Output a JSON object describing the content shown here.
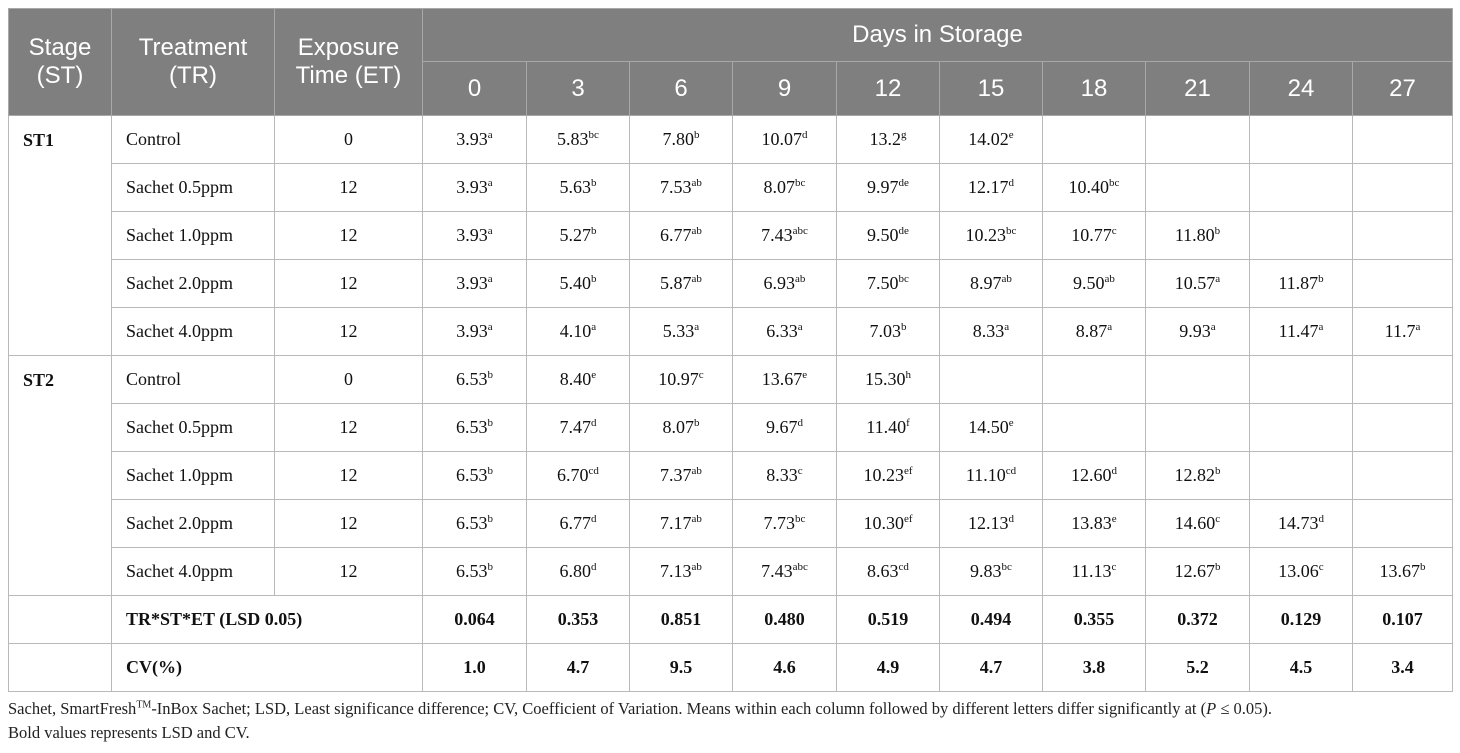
{
  "headers": {
    "stage": "Stage (ST)",
    "treatment": "Treatment (TR)",
    "exposure": "Exposure Time (ET)",
    "days": "Days in Storage",
    "day_values": [
      "0",
      "3",
      "6",
      "9",
      "12",
      "15",
      "18",
      "21",
      "24",
      "27"
    ]
  },
  "stages": [
    {
      "name": "ST1",
      "rows": [
        {
          "treatment": "Control",
          "exposure": "0",
          "cells": [
            [
              "3.93",
              "a"
            ],
            [
              "5.83",
              "bc"
            ],
            [
              "7.80",
              "b"
            ],
            [
              "10.07",
              "d"
            ],
            [
              "13.2",
              "g"
            ],
            [
              "14.02",
              "e"
            ],
            [
              "",
              ""
            ],
            [
              "",
              ""
            ],
            [
              "",
              ""
            ],
            [
              "",
              ""
            ]
          ]
        },
        {
          "treatment": "Sachet 0.5ppm",
          "exposure": "12",
          "cells": [
            [
              "3.93",
              "a"
            ],
            [
              "5.63",
              "b"
            ],
            [
              "7.53",
              "ab"
            ],
            [
              "8.07",
              "bc"
            ],
            [
              "9.97",
              "de"
            ],
            [
              "12.17",
              "d"
            ],
            [
              "10.40",
              "bc"
            ],
            [
              "",
              ""
            ],
            [
              "",
              ""
            ],
            [
              "",
              ""
            ]
          ]
        },
        {
          "treatment": "Sachet 1.0ppm",
          "exposure": "12",
          "cells": [
            [
              "3.93",
              "a"
            ],
            [
              "5.27",
              "b"
            ],
            [
              "6.77",
              "ab"
            ],
            [
              "7.43",
              "abc"
            ],
            [
              "9.50",
              "de"
            ],
            [
              "10.23",
              "bc"
            ],
            [
              "10.77",
              "c"
            ],
            [
              "11.80",
              "b"
            ],
            [
              "",
              ""
            ],
            [
              "",
              ""
            ]
          ]
        },
        {
          "treatment": "Sachet 2.0ppm",
          "exposure": "12",
          "cells": [
            [
              "3.93",
              "a"
            ],
            [
              "5.40",
              "b"
            ],
            [
              "5.87",
              "ab"
            ],
            [
              "6.93",
              "ab"
            ],
            [
              "7.50",
              "bc"
            ],
            [
              "8.97",
              "ab"
            ],
            [
              "9.50",
              "ab"
            ],
            [
              "10.57",
              "a"
            ],
            [
              "11.87",
              "b"
            ],
            [
              "",
              ""
            ]
          ]
        },
        {
          "treatment": "Sachet 4.0ppm",
          "exposure": "12",
          "cells": [
            [
              "3.93",
              "a"
            ],
            [
              "4.10",
              "a"
            ],
            [
              "5.33",
              "a"
            ],
            [
              "6.33",
              "a"
            ],
            [
              "7.03",
              "b"
            ],
            [
              "8.33",
              "a"
            ],
            [
              "8.87",
              "a"
            ],
            [
              "9.93",
              "a"
            ],
            [
              "11.47",
              "a"
            ],
            [
              "11.7",
              "a"
            ]
          ]
        }
      ]
    },
    {
      "name": "ST2",
      "rows": [
        {
          "treatment": "Control",
          "exposure": "0",
          "cells": [
            [
              "6.53",
              "b"
            ],
            [
              "8.40",
              "e"
            ],
            [
              "10.97",
              "c"
            ],
            [
              "13.67",
              "e"
            ],
            [
              "15.30",
              "h"
            ],
            [
              "",
              ""
            ],
            [
              "",
              ""
            ],
            [
              "",
              ""
            ],
            [
              "",
              ""
            ],
            [
              "",
              ""
            ]
          ]
        },
        {
          "treatment": "Sachet 0.5ppm",
          "exposure": "12",
          "cells": [
            [
              "6.53",
              "b"
            ],
            [
              "7.47",
              "d"
            ],
            [
              "8.07",
              "b"
            ],
            [
              "9.67",
              "d"
            ],
            [
              "11.40",
              "f"
            ],
            [
              "14.50",
              "e"
            ],
            [
              "",
              ""
            ],
            [
              "",
              ""
            ],
            [
              "",
              ""
            ],
            [
              "",
              ""
            ]
          ]
        },
        {
          "treatment": "Sachet 1.0ppm",
          "exposure": "12",
          "cells": [
            [
              "6.53",
              "b"
            ],
            [
              "6.70",
              "cd"
            ],
            [
              "7.37",
              "ab"
            ],
            [
              "8.33",
              "c"
            ],
            [
              "10.23",
              "ef"
            ],
            [
              "11.10",
              "cd"
            ],
            [
              "12.60",
              "d"
            ],
            [
              "12.82",
              "b"
            ],
            [
              "",
              ""
            ],
            [
              "",
              ""
            ]
          ]
        },
        {
          "treatment": "Sachet 2.0ppm",
          "exposure": "12",
          "cells": [
            [
              "6.53",
              "b"
            ],
            [
              "6.77",
              "d"
            ],
            [
              "7.17",
              "ab"
            ],
            [
              "7.73",
              "bc"
            ],
            [
              "10.30",
              "ef"
            ],
            [
              "12.13",
              "d"
            ],
            [
              "13.83",
              "e"
            ],
            [
              "14.60",
              "c"
            ],
            [
              "14.73",
              "d"
            ],
            [
              "",
              ""
            ]
          ]
        },
        {
          "treatment": "Sachet 4.0ppm",
          "exposure": "12",
          "cells": [
            [
              "6.53",
              "b"
            ],
            [
              "6.80",
              "d"
            ],
            [
              "7.13",
              "ab"
            ],
            [
              "7.43",
              "abc"
            ],
            [
              "8.63",
              "cd"
            ],
            [
              "9.83",
              "bc"
            ],
            [
              "11.13",
              "c"
            ],
            [
              "12.67",
              "b"
            ],
            [
              "13.06",
              "c"
            ],
            [
              "13.67",
              "b"
            ]
          ]
        }
      ]
    }
  ],
  "stats": [
    {
      "label": "TR*ST*ET (LSD 0.05)",
      "values": [
        "0.064",
        "0.353",
        "0.851",
        "0.480",
        "0.519",
        "0.494",
        "0.355",
        "0.372",
        "0.129",
        "0.107"
      ]
    },
    {
      "label": "CV(%)",
      "values": [
        "1.0",
        "4.7",
        "9.5",
        "4.6",
        "4.9",
        "4.7",
        "3.8",
        "5.2",
        "4.5",
        "3.4"
      ]
    }
  ],
  "footnote": {
    "line1_pre": "Sachet, SmartFresh",
    "line1_tm": "TM",
    "line1_post": "-InBox Sachet; LSD, Least significance difference; CV, Coefficient of Variation. Means within each column followed by different letters differ significantly at (",
    "p": "P",
    "line1_end": " ≤ 0.05).",
    "line2": "Bold values represents LSD and CV."
  }
}
